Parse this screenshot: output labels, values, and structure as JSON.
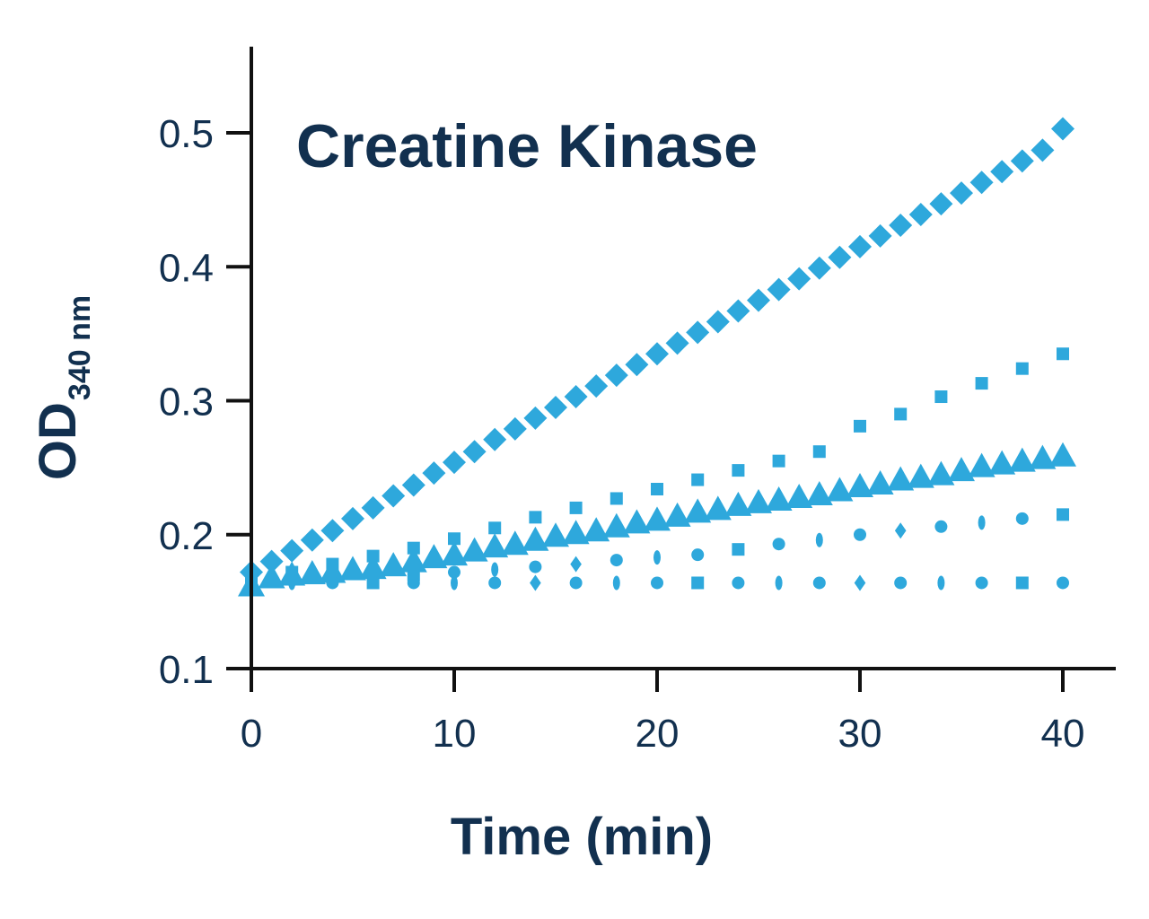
{
  "chart_data": {
    "type": "scatter",
    "title": "Creatine Kinase",
    "xlabel": "Time (min)",
    "ylabel": "OD",
    "ylabel_subscript": "340 nm",
    "xlim": [
      0,
      40
    ],
    "ylim": [
      0.1,
      0.55
    ],
    "xticks": [
      0,
      10,
      20,
      30,
      40
    ],
    "xtick_labels": [
      "0",
      "10",
      "20",
      "30",
      "40"
    ],
    "yticks": [
      0.1,
      0.2,
      0.3,
      0.4,
      0.5
    ],
    "ytick_labels": [
      "0.1",
      "0.2",
      "0.3",
      "0.4",
      "0.5"
    ],
    "grid": false,
    "legend": "none",
    "colors": {
      "points": "#2ea8dc",
      "text": "#12304f",
      "axis": "#111111"
    },
    "series": [
      {
        "marker": "diamond",
        "x": [
          0,
          1,
          2,
          3,
          4,
          5,
          6,
          7,
          8,
          9,
          10,
          11,
          12,
          13,
          14,
          15,
          16,
          17,
          18,
          19,
          20,
          21,
          22,
          23,
          24,
          25,
          26,
          27,
          28,
          29,
          30,
          31,
          32,
          33,
          34,
          35,
          36,
          37,
          38,
          39,
          40
        ],
        "y": [
          0.172,
          0.18,
          0.188,
          0.196,
          0.203,
          0.212,
          0.22,
          0.229,
          0.237,
          0.246,
          0.254,
          0.262,
          0.271,
          0.279,
          0.287,
          0.295,
          0.303,
          0.311,
          0.319,
          0.327,
          0.335,
          0.343,
          0.351,
          0.359,
          0.367,
          0.375,
          0.383,
          0.391,
          0.399,
          0.407,
          0.415,
          0.423,
          0.431,
          0.439,
          0.447,
          0.455,
          0.463,
          0.471,
          0.479,
          0.487,
          0.503
        ]
      },
      {
        "marker": "square",
        "x": [
          0,
          2,
          4,
          6,
          8,
          10,
          12,
          14,
          16,
          18,
          20,
          22,
          24,
          26,
          28,
          30,
          32,
          34,
          36,
          38,
          40
        ],
        "y": [
          0.165,
          0.172,
          0.178,
          0.184,
          0.19,
          0.197,
          0.205,
          0.213,
          0.22,
          0.227,
          0.234,
          0.241,
          0.248,
          0.255,
          0.262,
          0.281,
          0.29,
          0.303,
          0.313,
          0.324,
          0.335
        ]
      },
      {
        "marker": "triangle",
        "x": [
          0,
          1,
          2,
          3,
          4,
          5,
          6,
          7,
          8,
          9,
          10,
          11,
          12,
          13,
          14,
          15,
          16,
          17,
          18,
          19,
          20,
          21,
          22,
          23,
          24,
          25,
          26,
          27,
          28,
          29,
          30,
          31,
          32,
          33,
          34,
          35,
          36,
          37,
          38,
          39,
          40
        ],
        "y": [
          0.162,
          0.168,
          0.17,
          0.171,
          0.172,
          0.174,
          0.175,
          0.177,
          0.18,
          0.183,
          0.185,
          0.188,
          0.191,
          0.193,
          0.196,
          0.199,
          0.201,
          0.203,
          0.206,
          0.209,
          0.211,
          0.214,
          0.217,
          0.219,
          0.222,
          0.224,
          0.226,
          0.228,
          0.23,
          0.233,
          0.236,
          0.238,
          0.241,
          0.243,
          0.245,
          0.248,
          0.251,
          0.253,
          0.255,
          0.257,
          0.259
        ]
      },
      {
        "marker": "mixed",
        "x": [
          0,
          2,
          4,
          6,
          8,
          10,
          12,
          14,
          16,
          18,
          20,
          22,
          24,
          26,
          28,
          30,
          32,
          34,
          36,
          38,
          40
        ],
        "y": [
          0.165,
          0.166,
          0.167,
          0.168,
          0.17,
          0.172,
          0.174,
          0.176,
          0.178,
          0.181,
          0.183,
          0.185,
          0.189,
          0.193,
          0.196,
          0.2,
          0.203,
          0.206,
          0.209,
          0.212,
          0.215
        ]
      },
      {
        "marker": "mixed",
        "x": [
          0,
          2,
          4,
          6,
          8,
          10,
          12,
          14,
          16,
          18,
          20,
          22,
          24,
          26,
          28,
          30,
          32,
          34,
          36,
          38,
          40
        ],
        "y": [
          0.164,
          0.164,
          0.164,
          0.164,
          0.164,
          0.164,
          0.164,
          0.164,
          0.164,
          0.164,
          0.164,
          0.164,
          0.164,
          0.164,
          0.164,
          0.164,
          0.164,
          0.164,
          0.164,
          0.164,
          0.164
        ]
      }
    ]
  }
}
